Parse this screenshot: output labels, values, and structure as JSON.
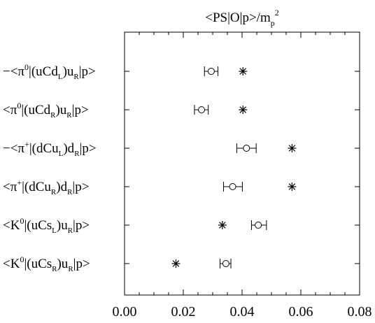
{
  "chart_data": {
    "type": "scatter",
    "title": "<PS|O|p>/m_p^2",
    "xlim": [
      0.0,
      0.08
    ],
    "x_ticks": [
      "0.00",
      "0.02",
      "0.04",
      "0.06",
      "0.08"
    ],
    "x_tick_values": [
      0.0,
      0.02,
      0.04,
      0.06,
      0.08
    ],
    "rows": [
      {
        "label": {
          "pre": "−<π",
          "sup1": "0",
          "mid": "|(uCd",
          "sub1": "L",
          "mid2": ")u",
          "sub2": "R",
          "post": "|p>"
        },
        "circle_value": 0.0295,
        "err_low": 0.0272,
        "err_high": 0.0318,
        "star_value": 0.0403
      },
      {
        "label": {
          "pre": "<π",
          "sup1": "0",
          "mid": "|(uCd",
          "sub1": "R",
          "mid2": ")u",
          "sub2": "R",
          "post": "|p>"
        },
        "circle_value": 0.0262,
        "err_low": 0.0238,
        "err_high": 0.0285,
        "star_value": 0.0403
      },
      {
        "label": {
          "pre": "−<π",
          "sup1": "+",
          "mid": "|(dCu",
          "sub1": "L",
          "mid2": ")d",
          "sub2": "R",
          "post": "|p>"
        },
        "circle_value": 0.0415,
        "err_low": 0.0382,
        "err_high": 0.0448,
        "star_value": 0.057
      },
      {
        "label": {
          "pre": "<π",
          "sup1": "+",
          "mid": "|(dCu",
          "sub1": "R",
          "mid2": ")d",
          "sub2": "R",
          "post": "|p>"
        },
        "circle_value": 0.0368,
        "err_low": 0.0337,
        "err_high": 0.0401,
        "star_value": 0.057
      },
      {
        "label": {
          "pre": "<K",
          "sup1": "0",
          "mid": "|(uCs",
          "sub1": "L",
          "mid2": ")u",
          "sub2": "R",
          "post": "|p>"
        },
        "circle_value": 0.0455,
        "err_low": 0.0432,
        "err_high": 0.0483,
        "star_value": 0.0333
      },
      {
        "label": {
          "pre": "<K",
          "sup1": "0",
          "mid": "|(uCs",
          "sub1": "R",
          "mid2": ")u",
          "sub2": "R",
          "post": "|p>"
        },
        "circle_value": 0.0345,
        "err_low": 0.0325,
        "err_high": 0.0362,
        "star_value": 0.0175
      }
    ]
  }
}
